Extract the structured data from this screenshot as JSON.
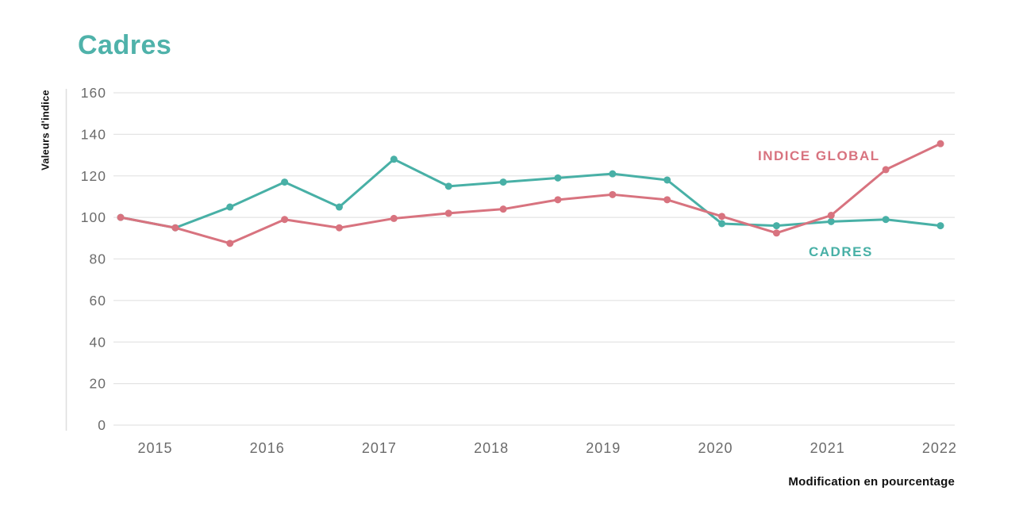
{
  "colors": {
    "teal": "#48B0A6",
    "pink": "#D8737F",
    "title_teal": "#4FB2AA",
    "grid": "#E4E4E4",
    "axis_line": "#DEDEDE",
    "tick_text": "#6B6B6B",
    "dark_text": "#111111"
  },
  "chart_data": {
    "type": "line",
    "title": "Cadres",
    "ylabel": "Valeurs d'indice",
    "xlabel": "Modification en pourcentage",
    "ylim": [
      0,
      160
    ],
    "y_ticks": [
      160,
      140,
      120,
      100,
      80,
      60,
      40,
      20,
      0
    ],
    "x_tick_labels": [
      "2015",
      "2016",
      "2017",
      "2018",
      "2019",
      "2020",
      "2021",
      "2022"
    ],
    "points_per_year": 2,
    "grid": "horizontal gridlines only, no legend box, inline series labels",
    "series": [
      {
        "name": "INDICE GLOBAL",
        "color_key": "pink",
        "values": [
          100,
          95,
          87.5,
          99,
          95,
          99.5,
          102,
          104,
          108.5,
          111,
          108.5,
          100.5,
          92.5,
          101,
          123,
          135.5
        ]
      },
      {
        "name": "CADRES",
        "color_key": "teal",
        "values": [
          100,
          95,
          105,
          117,
          105,
          128,
          115,
          117,
          119,
          121,
          118,
          97,
          96,
          98,
          99,
          96
        ]
      }
    ]
  }
}
